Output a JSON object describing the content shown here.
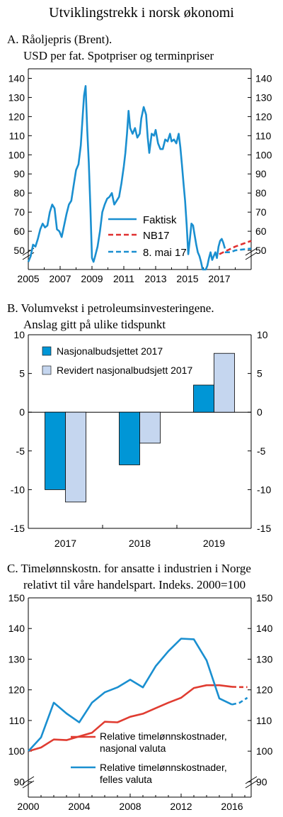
{
  "page_title": "Utviklingstrekk i norsk økonomi",
  "chart_data": [
    {
      "type": "line",
      "title_line1": "A. Råoljepris (Brent).",
      "title_line2": "USD per fat. Spotpriser og terminpriser",
      "ylim": [
        40,
        145
      ],
      "yticks": [
        50,
        60,
        70,
        80,
        90,
        100,
        110,
        120,
        130,
        140
      ],
      "xlim": [
        2005,
        2019
      ],
      "xticks": [
        2005,
        2007,
        2009,
        2011,
        2013,
        2015,
        2017
      ],
      "grid": false,
      "legend_position": "bottom-right",
      "series": [
        {
          "name": "Faktisk",
          "color": "#1a8fd0",
          "dash": "solid",
          "x": [
            2005.0,
            2005.15,
            2005.3,
            2005.45,
            2005.6,
            2005.75,
            2005.9,
            2006.05,
            2006.2,
            2006.35,
            2006.5,
            2006.65,
            2006.8,
            2006.95,
            2007.1,
            2007.25,
            2007.4,
            2007.55,
            2007.7,
            2007.85,
            2008.0,
            2008.15,
            2008.3,
            2008.42,
            2008.5,
            2008.6,
            2008.7,
            2008.8,
            2008.9,
            2009.0,
            2009.1,
            2009.2,
            2009.35,
            2009.5,
            2009.65,
            2009.8,
            2009.95,
            2010.1,
            2010.25,
            2010.4,
            2010.55,
            2010.7,
            2010.85,
            2011.0,
            2011.1,
            2011.2,
            2011.3,
            2011.4,
            2011.55,
            2011.7,
            2011.85,
            2012.0,
            2012.1,
            2012.25,
            2012.4,
            2012.5,
            2012.6,
            2012.75,
            2012.9,
            2013.0,
            2013.15,
            2013.3,
            2013.45,
            2013.6,
            2013.75,
            2013.9,
            2014.0,
            2014.15,
            2014.3,
            2014.45,
            2014.55,
            2014.65,
            2014.75,
            2014.85,
            2014.95,
            2015.05,
            2015.15,
            2015.25,
            2015.35,
            2015.45,
            2015.55,
            2015.65,
            2015.75,
            2015.85,
            2015.95,
            2016.05,
            2016.15,
            2016.25,
            2016.35,
            2016.45,
            2016.55,
            2016.65,
            2016.75,
            2016.85,
            2016.95,
            2017.05,
            2017.15,
            2017.25,
            2017.35
          ],
          "values": [
            44,
            47,
            53,
            52,
            56,
            61,
            64,
            62,
            63,
            70,
            74,
            72,
            61,
            60,
            57,
            63,
            69,
            74,
            76,
            84,
            92,
            95,
            105,
            121,
            131,
            136,
            113,
            96,
            72,
            46,
            44,
            47,
            52,
            60,
            70,
            74,
            77,
            78,
            80,
            74,
            76,
            78,
            85,
            94,
            101,
            111,
            123,
            114,
            111,
            114,
            109,
            111,
            119,
            125,
            121,
            109,
            101,
            111,
            110,
            113,
            106,
            103,
            103,
            108,
            107,
            111,
            107,
            108,
            106,
            111,
            104,
            95,
            85,
            76,
            63,
            48,
            56,
            64,
            63,
            58,
            53,
            49,
            47,
            44,
            38,
            32,
            31,
            42,
            46,
            49,
            45,
            47,
            49,
            46,
            52,
            55,
            56,
            54,
            51
          ]
        },
        {
          "name": "NB17",
          "color": "#e03030",
          "dash": "dashed",
          "x": [
            2017.0,
            2017.5,
            2018.0,
            2018.5,
            2019.0
          ],
          "values": [
            48,
            50,
            52,
            53.5,
            55
          ]
        },
        {
          "name": "8. mai 17",
          "color": "#1a8fd0",
          "dash": "dashed",
          "x": [
            2017.35,
            2017.7,
            2018.0,
            2018.5,
            2019.0
          ],
          "values": [
            49,
            49,
            50,
            50.5,
            51
          ]
        }
      ]
    },
    {
      "type": "bar",
      "title_line1": "B. Volumvekst i petroleumsinvesteringene.",
      "title_line2": "Anslag gitt på ulike tidspunkt",
      "categories": [
        "2017",
        "2018",
        "2019"
      ],
      "ylim": [
        -15,
        10
      ],
      "yticks": [
        10,
        5,
        0,
        -5,
        -10,
        -15
      ],
      "ytick_labels": [
        "10",
        "5",
        "0",
        "-5",
        "-10",
        "-15"
      ],
      "grid": false,
      "legend_position": "top-left",
      "series": [
        {
          "name": "Nasjonalbudsjettet 2017",
          "color": "#0096d6",
          "values": [
            -10,
            -6.8,
            3.5
          ]
        },
        {
          "name": "Revidert nasjonalbudsjett 2017",
          "color": "#c5d6ef",
          "values": [
            -11.6,
            -4,
            7.6
          ]
        }
      ]
    },
    {
      "type": "line",
      "title_line1": "C. Timelønnskostn. for ansatte i industrien i Norge",
      "title_line2": "relativt til våre handelspart. Indeks. 2000=100",
      "ylim": [
        85,
        150
      ],
      "yticks": [
        90,
        100,
        110,
        120,
        130,
        140,
        150
      ],
      "xlim": [
        2000,
        2017.5
      ],
      "xticks": [
        2000,
        2004,
        2008,
        2012,
        2016
      ],
      "grid": false,
      "legend_position": "bottom-right",
      "series": [
        {
          "name_line1": "Relative timelønnskostnader,",
          "name_line2": "nasjonal valuta",
          "color": "#e03c31",
          "dash": "solid",
          "x": [
            2000,
            2001,
            2002,
            2003,
            2004,
            2005,
            2006,
            2007,
            2008,
            2009,
            2010,
            2011,
            2012,
            2013,
            2014,
            2015,
            2016
          ],
          "values": [
            100,
            101.2,
            103.8,
            103.6,
            104.8,
            106,
            109.6,
            109.4,
            111.2,
            112.2,
            114,
            115.8,
            117.4,
            120.6,
            121.5,
            121.5,
            121
          ]
        },
        {
          "name": "",
          "color": "#e03c31",
          "dash": "dashed",
          "x": [
            2016,
            2016.6,
            2017.2
          ],
          "values": [
            121,
            120.9,
            120.9
          ]
        },
        {
          "name_line1": "Relative timelønnskostnader,",
          "name_line2": "felles valuta",
          "color": "#1a8fd0",
          "dash": "solid",
          "x": [
            2000,
            2001,
            2002,
            2003,
            2004,
            2005,
            2006,
            2007,
            2008,
            2009,
            2010,
            2011,
            2012,
            2013,
            2014,
            2015,
            2016
          ],
          "values": [
            100,
            104.5,
            115.8,
            112.3,
            109.4,
            115.8,
            119.2,
            120.8,
            123.3,
            120.8,
            127.7,
            132.6,
            136.7,
            136.5,
            129.6,
            117.2,
            115.2
          ]
        },
        {
          "name": "",
          "color": "#1a8fd0",
          "dash": "dashed",
          "x": [
            2016,
            2016.6,
            2017.2
          ],
          "values": [
            115.2,
            115.8,
            117.4
          ]
        }
      ]
    }
  ]
}
